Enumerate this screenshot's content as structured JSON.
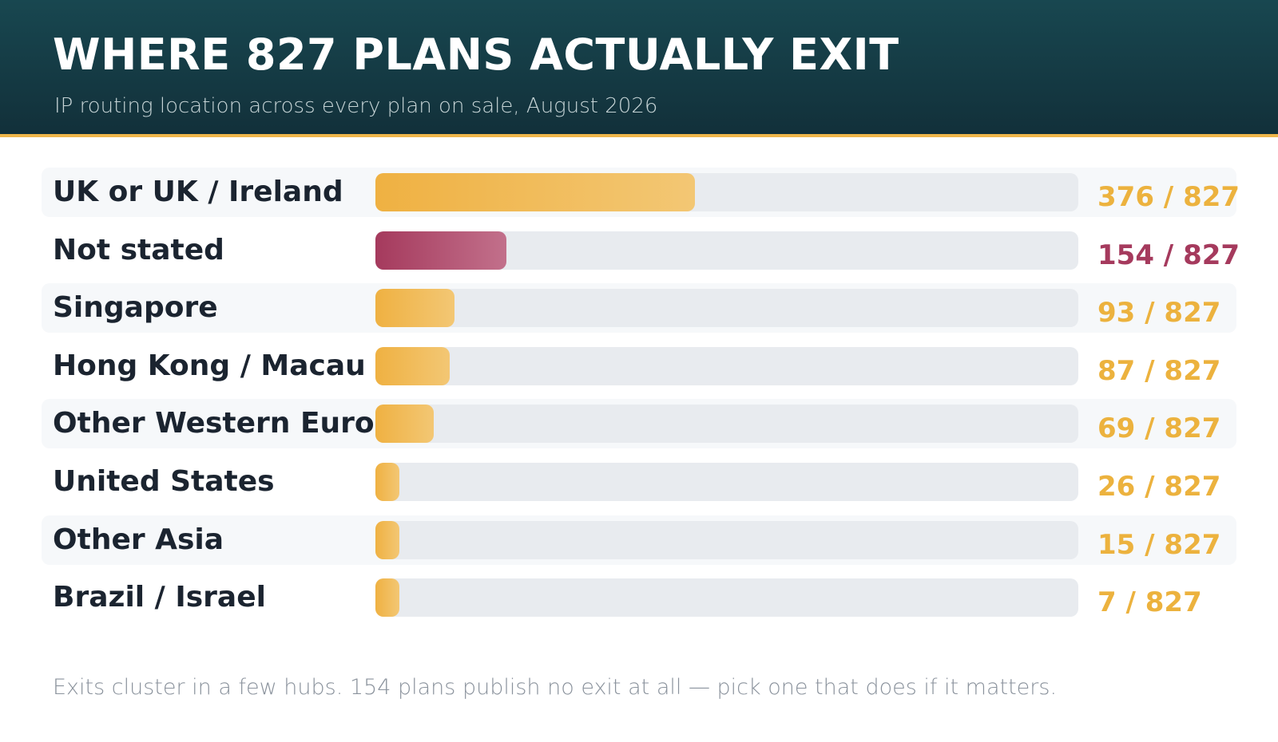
{
  "header": {
    "title": "WHERE 827 PLANS ACTUALLY EXIT",
    "subtitle": "IP routing location across every plan on sale, August 2026"
  },
  "colors": {
    "header_bg": "#12303a",
    "accent": "#efb54a",
    "highlight": "#a53a5d",
    "track": "#e8ebef",
    "label_text": "#1b2430"
  },
  "chart_data": {
    "type": "bar",
    "orientation": "horizontal",
    "total": 827,
    "categories": [
      "UK or UK / Ireland",
      "Not stated",
      "Singapore",
      "Hong Kong / Macau",
      "Other Western Europe",
      "United States",
      "Other Asia",
      "Brazil / Israel"
    ],
    "values": [
      376,
      154,
      93,
      87,
      69,
      26,
      15,
      7
    ],
    "value_labels": [
      "376 / 827",
      "154 / 827",
      "93 / 827",
      "87 / 827",
      "69 / 827",
      "26 / 827",
      "15 / 827",
      "7 / 827"
    ],
    "highlight": [
      "Not stated"
    ],
    "xlim": [
      0,
      827
    ]
  },
  "footnote": "Exits cluster in a few hubs. 154 plans publish no exit at all — pick one that does if it matters."
}
